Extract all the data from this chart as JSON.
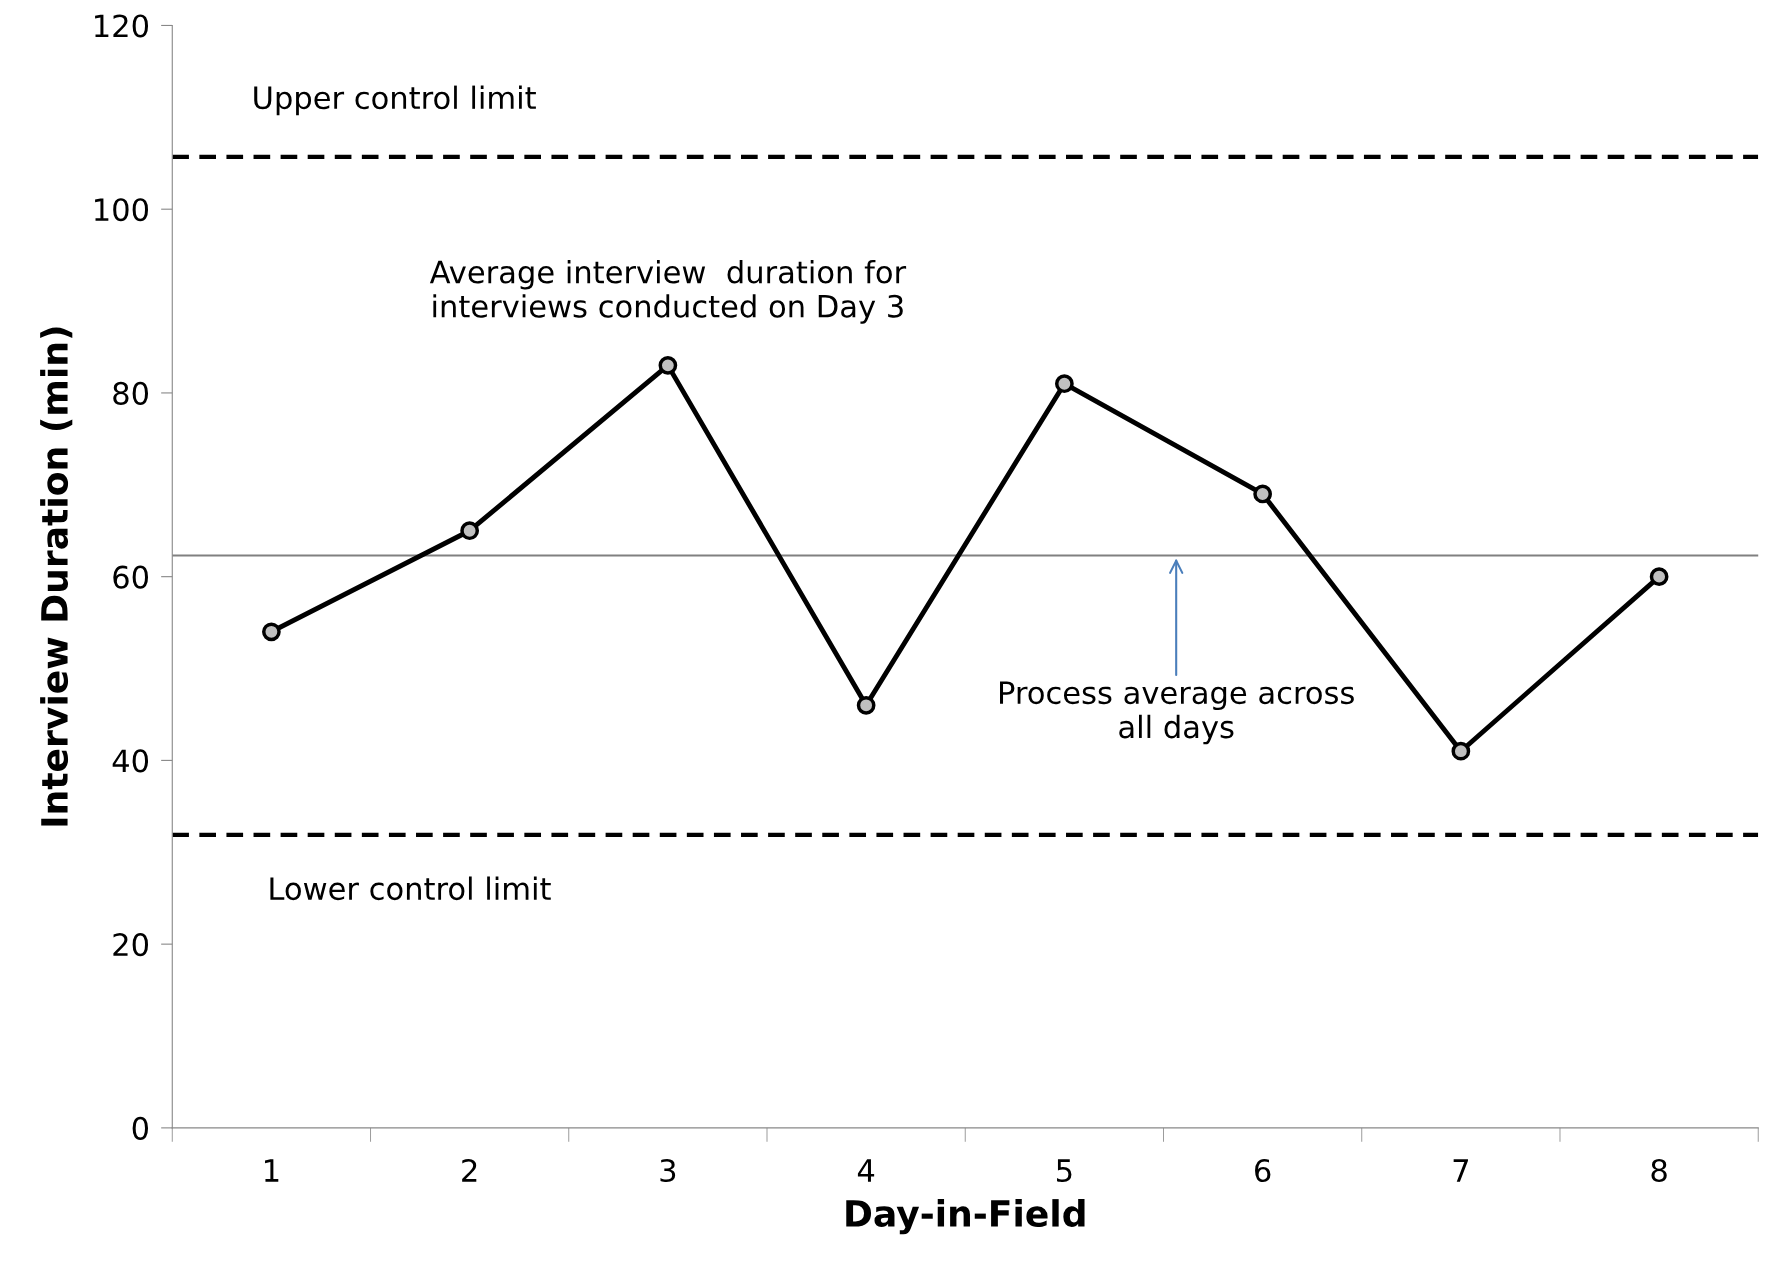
{
  "chart_data": {
    "type": "line",
    "xlabel": "Day-in-Field",
    "ylabel": "Interview Duration (min)",
    "categories": [
      "1",
      "2",
      "3",
      "4",
      "5",
      "6",
      "7",
      "8"
    ],
    "series": [
      {
        "color": "#000000",
        "values": [
          54,
          65,
          83,
          46,
          81,
          69,
          41,
          60
        ]
      }
    ],
    "marker": "circle",
    "line_style": "solid",
    "grid": false,
    "legend": false,
    "ylim": [
      0,
      120
    ],
    "yticks": [
      0,
      20,
      40,
      60,
      80,
      100,
      120
    ],
    "ref_lines": [
      {
        "axis": "y",
        "value": 105.7,
        "label": "Upper control limit",
        "color": "#000000",
        "line_style": "dashed"
      },
      {
        "axis": "y",
        "value": 62.3,
        "label": "Process average across\nall days",
        "color": "#808080",
        "line_style": "solid"
      },
      {
        "axis": "y",
        "value": 31.9,
        "label": "Lower control limit",
        "color": "#000000",
        "line_style": "dashed"
      }
    ],
    "annotations": [
      {
        "text": "Average interview  duration for\ninterviews conducted on Day 3",
        "x": "3",
        "y": 83
      }
    ]
  }
}
